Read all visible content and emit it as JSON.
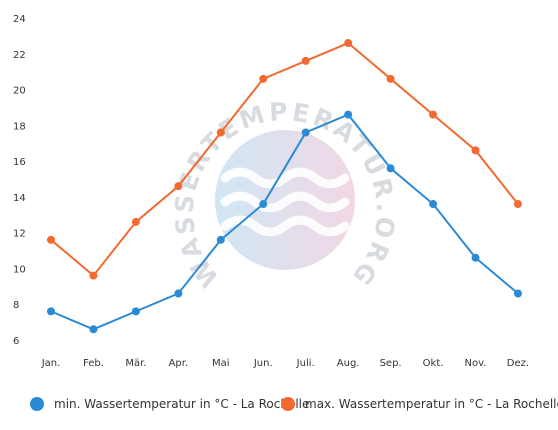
{
  "chart_data": {
    "type": "line",
    "categories": [
      "Jan.",
      "Feb.",
      "Mär.",
      "Apr.",
      "Mai",
      "Jun.",
      "Juli.",
      "Aug.",
      "Sep.",
      "Okt.",
      "Nov.",
      "Dez."
    ],
    "series": [
      {
        "name": "min. Wassertemperatur in °C - La Rochelle",
        "color": "#2b8ad6",
        "values": [
          7.6,
          6.6,
          7.6,
          8.6,
          11.6,
          13.6,
          17.6,
          18.6,
          15.6,
          13.6,
          10.6,
          8.6
        ]
      },
      {
        "name": "max. Wassertemperatur in °C - La Rochelle",
        "color": "#f26a30",
        "values": [
          11.6,
          9.6,
          12.6,
          14.6,
          17.6,
          20.6,
          21.6,
          22.6,
          20.6,
          18.6,
          16.6,
          13.6
        ]
      }
    ],
    "ylim": [
      6,
      24
    ],
    "yticks": [
      6,
      8,
      10,
      12,
      14,
      16,
      18,
      20,
      22,
      24
    ],
    "grid": false,
    "legend_position": "bottom",
    "watermark": "WASSERTEMPERATUR.ORG"
  }
}
